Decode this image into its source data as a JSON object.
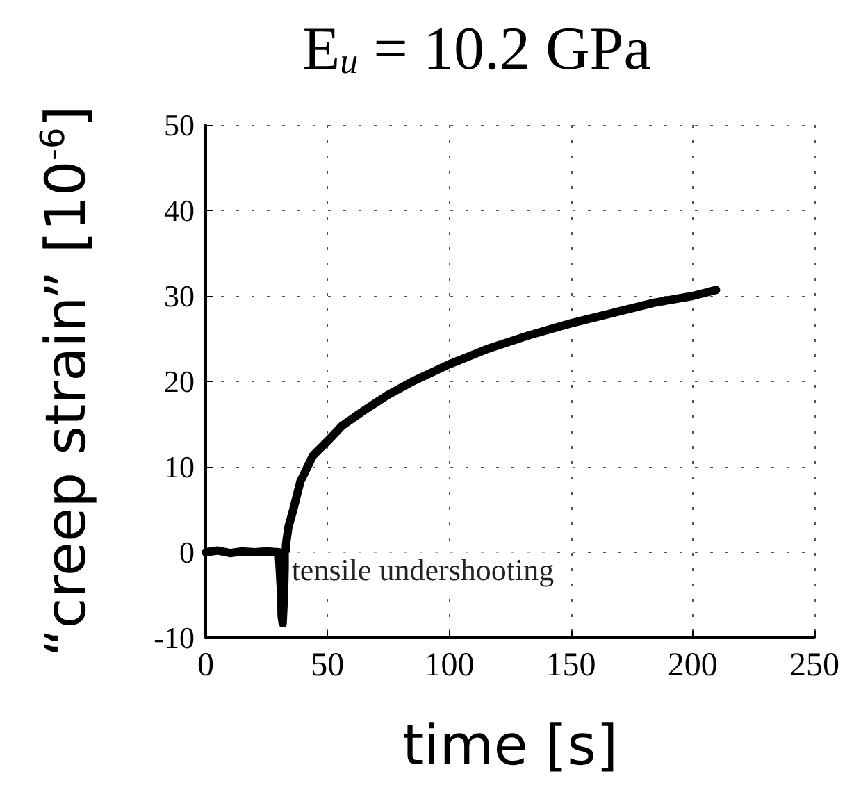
{
  "chart_data": {
    "type": "line",
    "title": "E$_{u}$ = 10.2 GPa",
    "xlabel": "time [s]",
    "ylabel": "“creep strain” [10$^{-6}$]",
    "x": [
      0,
      5,
      10,
      15,
      20,
      25,
      30,
      30.8,
      31.2,
      31.6,
      32,
      32.5,
      33,
      34,
      35.5,
      38.9,
      44,
      50,
      56,
      64.5,
      74.7,
      85,
      100,
      115.7,
      132.8,
      150,
      167,
      184,
      200,
      209.6
    ],
    "series": [
      {
        "color": "#000000",
        "values": [
          0,
          0.2,
          -0.1,
          0.1,
          0,
          0.1,
          0,
          -4,
          -7.5,
          -8.3,
          -6,
          -2,
          1,
          3,
          4.5,
          8.3,
          11.3,
          13,
          14.8,
          16.5,
          18.4,
          20,
          22,
          23.8,
          25.4,
          26.8,
          28,
          29.2,
          30,
          30.7
        ]
      }
    ],
    "annotations": [
      {
        "text": "tensile undershooting",
        "x": 33,
        "y": -2
      }
    ],
    "xlim": [
      0,
      250
    ],
    "xticks": [
      0,
      50,
      100,
      150,
      200,
      250
    ],
    "ylim": [
      -10,
      50
    ],
    "yticks": [
      -10,
      0,
      10,
      20,
      30,
      40,
      50
    ],
    "grid": true,
    "marker": "none",
    "line_style": "solid"
  }
}
